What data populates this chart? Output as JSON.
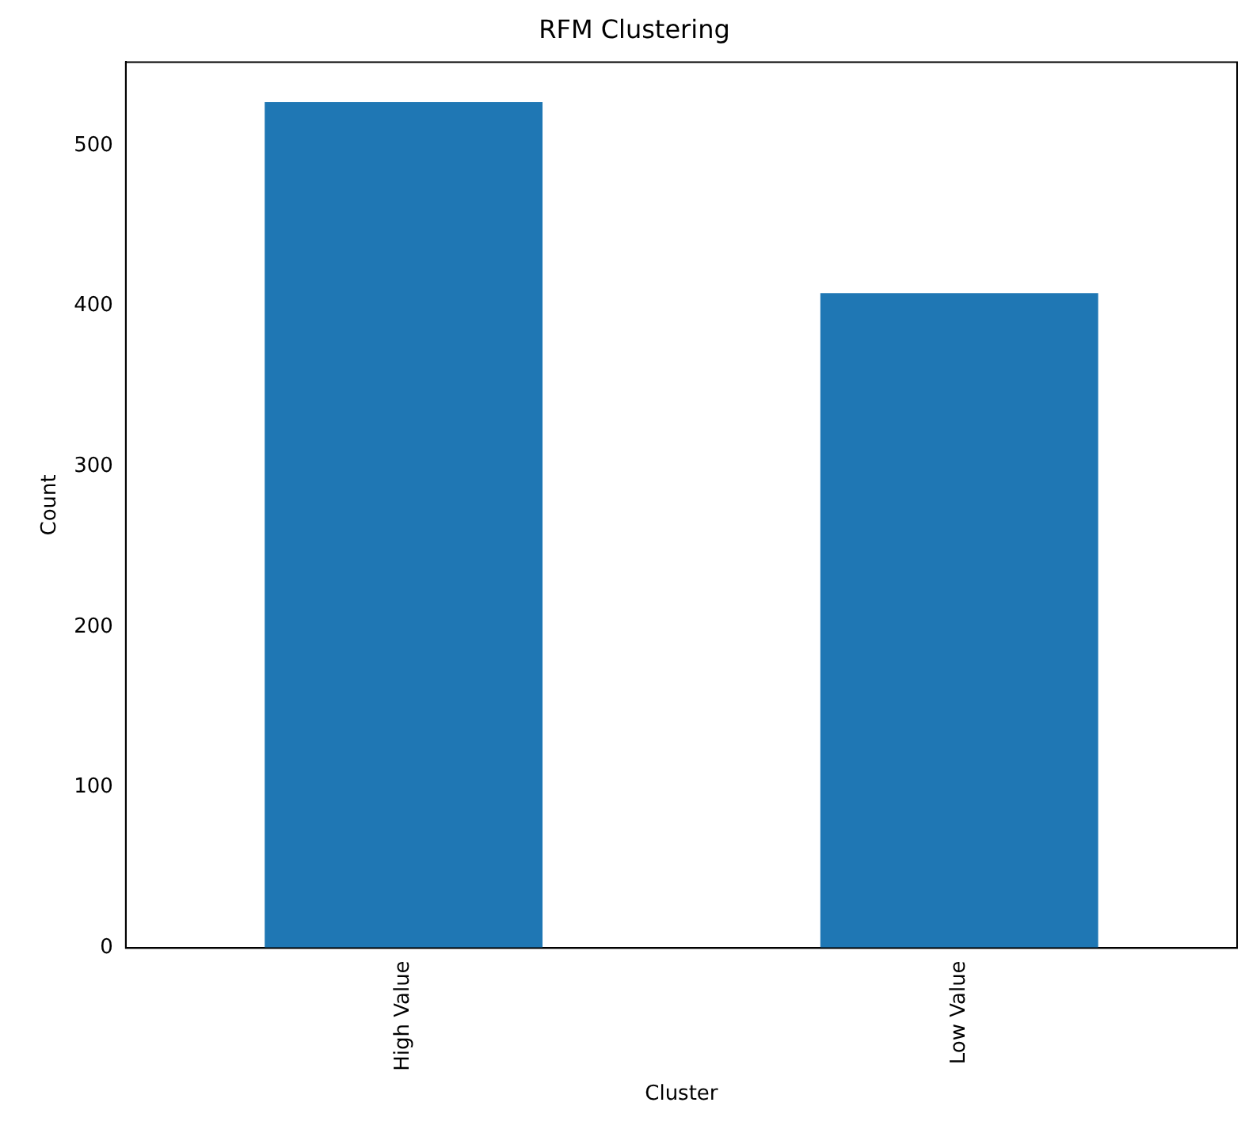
{
  "chart_data": {
    "type": "bar",
    "title": "RFM Clustering",
    "xlabel": "Cluster",
    "ylabel": "Count",
    "categories": [
      "High Value",
      "Low Value"
    ],
    "values": [
      527,
      408
    ],
    "color": "#1f77b4",
    "ylim": [
      0,
      552
    ],
    "yticks": [
      0,
      100,
      200,
      300,
      400,
      500
    ],
    "grid": false,
    "legend": false
  }
}
